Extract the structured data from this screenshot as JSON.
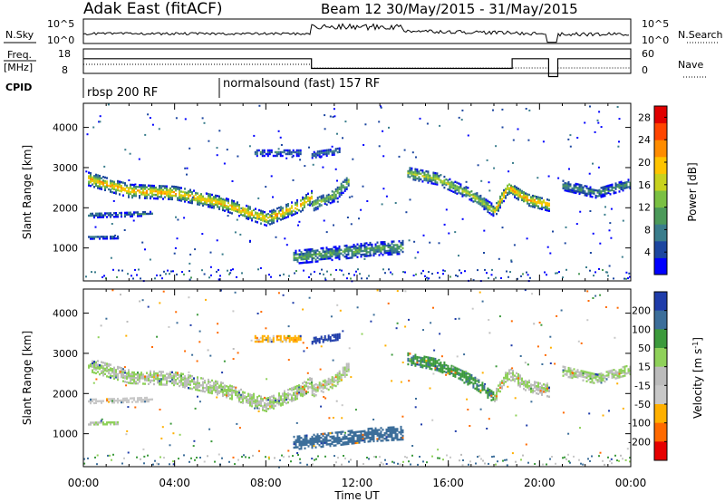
{
  "header": {
    "station": "Adak East (fitACF)",
    "beam_info": "Beam 12 30/May/2015 - 31/May/2015"
  },
  "panels": {
    "nsky": {
      "left_label": "N.Sky",
      "left_ticks": [
        "10^5",
        "10^0"
      ],
      "right_label": "N.Search",
      "right_ticks": [
        "10^5",
        "10^0"
      ]
    },
    "freq": {
      "left_label_1": "Freq.",
      "left_label_2": "[MHz]",
      "left_ticks": [
        "18",
        "8"
      ],
      "right_label": "Nave",
      "right_ticks": [
        "60",
        "0"
      ]
    },
    "cpid": {
      "label": "CPID",
      "segments": [
        "rbsp 200 RF",
        "normalsound (fast) 157 RF"
      ]
    }
  },
  "chart_data": [
    {
      "type": "heatmap",
      "name": "power",
      "ylabel": "Slant Range [km]",
      "xlabel": "Time UT",
      "xlim": [
        0,
        24
      ],
      "ylim": [
        180,
        4600
      ],
      "x_ticks": [
        "00:00",
        "04:00",
        "08:00",
        "12:00",
        "16:00",
        "20:00",
        "00:00"
      ],
      "y_ticks": [
        1000,
        2000,
        3000,
        4000
      ],
      "colorbar_label": "Power [dB]",
      "colorbar_ticks": [
        "4",
        "8",
        "12",
        "16",
        "20",
        "24",
        "28"
      ],
      "colorbar_range": [
        0,
        30
      ],
      "bands": [
        {
          "t": [
            0.2,
            2.0,
            4.0,
            6.0,
            8.0,
            9.5,
            10.0
          ],
          "r": [
            2700,
            2400,
            2350,
            2100,
            1700,
            2050,
            2250
          ],
          "w": 320,
          "peak": 22
        },
        {
          "t": [
            10.0,
            11.0,
            11.6
          ],
          "r": [
            2050,
            2300,
            2650
          ],
          "w": 300,
          "peak": 14
        },
        {
          "t": [
            14.2,
            15.5,
            17.0,
            18.0
          ],
          "r": [
            2850,
            2700,
            2300,
            1900
          ],
          "w": 280,
          "peak": 16
        },
        {
          "t": [
            18.0,
            18.6,
            19.4,
            20.4
          ],
          "r": [
            1900,
            2500,
            2200,
            2050
          ],
          "w": 300,
          "peak": 22
        },
        {
          "t": [
            21.0,
            22.5,
            24.0
          ],
          "r": [
            2550,
            2350,
            2600
          ],
          "w": 250,
          "peak": 10
        },
        {
          "t": [
            0.2,
            1.5,
            3.0
          ],
          "r": [
            1800,
            1820,
            1850
          ],
          "w": 120,
          "peak": 8
        },
        {
          "t": [
            0.2,
            1.5
          ],
          "r": [
            1250,
            1260
          ],
          "w": 80,
          "peak": 7
        },
        {
          "t": [
            9.2,
            11.0,
            12.5,
            14.0
          ],
          "r": [
            750,
            850,
            950,
            1000
          ],
          "w": 320,
          "peak": 12
        },
        {
          "t": [
            7.5,
            9.5
          ],
          "r": [
            3350,
            3350
          ],
          "w": 150,
          "peak": 8
        },
        {
          "t": [
            10.0,
            11.2
          ],
          "r": [
            3300,
            3400
          ],
          "w": 150,
          "peak": 8
        }
      ],
      "gaps": [
        [
          20.45,
          20.75
        ]
      ]
    },
    {
      "type": "heatmap",
      "name": "velocity",
      "ylabel": "Slant Range [km]",
      "xlabel": "Time UT",
      "xlim": [
        0,
        24
      ],
      "ylim": [
        180,
        4600
      ],
      "x_ticks": [
        "00:00",
        "04:00",
        "08:00",
        "12:00",
        "16:00",
        "20:00",
        "00:00"
      ],
      "y_ticks": [
        1000,
        2000,
        3000,
        4000
      ],
      "colorbar_label": "Velocity [m s^-1]",
      "colorbar_ticks": [
        "200",
        "100",
        "50",
        "15",
        "-15",
        "-50",
        "-100",
        "-200"
      ],
      "bands": [
        {
          "t": [
            0.2,
            2.0,
            4.0,
            6.0,
            8.0,
            9.5,
            10.0
          ],
          "r": [
            2700,
            2400,
            2350,
            2100,
            1700,
            2050,
            2250
          ],
          "w": 320,
          "vel": 0
        },
        {
          "t": [
            10.0,
            11.0,
            11.6
          ],
          "r": [
            2050,
            2300,
            2650
          ],
          "w": 300,
          "vel": 0
        },
        {
          "t": [
            14.2,
            15.5,
            17.0,
            18.0
          ],
          "r": [
            2850,
            2700,
            2300,
            1900
          ],
          "w": 280,
          "vel": 40
        },
        {
          "t": [
            18.0,
            18.6,
            19.4,
            20.4
          ],
          "r": [
            1900,
            2500,
            2200,
            2050
          ],
          "w": 300,
          "vel": 0
        },
        {
          "t": [
            21.0,
            22.5,
            24.0
          ],
          "r": [
            2550,
            2350,
            2600
          ],
          "w": 250,
          "vel": 0
        },
        {
          "t": [
            0.2,
            1.5,
            3.0
          ],
          "r": [
            1800,
            1820,
            1850
          ],
          "w": 120,
          "vel": -30
        },
        {
          "t": [
            0.2,
            1.5
          ],
          "r": [
            1250,
            1260
          ],
          "w": 80,
          "vel": 0
        },
        {
          "t": [
            9.2,
            11.0,
            12.5,
            14.0
          ],
          "r": [
            750,
            850,
            950,
            1000
          ],
          "w": 320,
          "vel": 70
        },
        {
          "t": [
            7.5,
            9.5
          ],
          "r": [
            3350,
            3350
          ],
          "w": 150,
          "vel": -60
        },
        {
          "t": [
            10.0,
            11.2
          ],
          "r": [
            3300,
            3400
          ],
          "w": 150,
          "vel": 150
        }
      ],
      "gaps": [
        [
          20.45,
          20.75
        ]
      ]
    }
  ],
  "colors": {
    "power_scale": [
      "#0000ff",
      "#1c46a0",
      "#3a7d8c",
      "#4c9a5a",
      "#7ac043",
      "#c8d21e",
      "#ffc400",
      "#ff8c00",
      "#ff4500",
      "#e00000"
    ],
    "velocity_scale": [
      "#e60000",
      "#ff6a00",
      "#ffb000",
      "#c8c8c8",
      "#bcbcbc",
      "#8fd15a",
      "#3c9a3c",
      "#3c6e9a",
      "#1f3caa"
    ]
  }
}
